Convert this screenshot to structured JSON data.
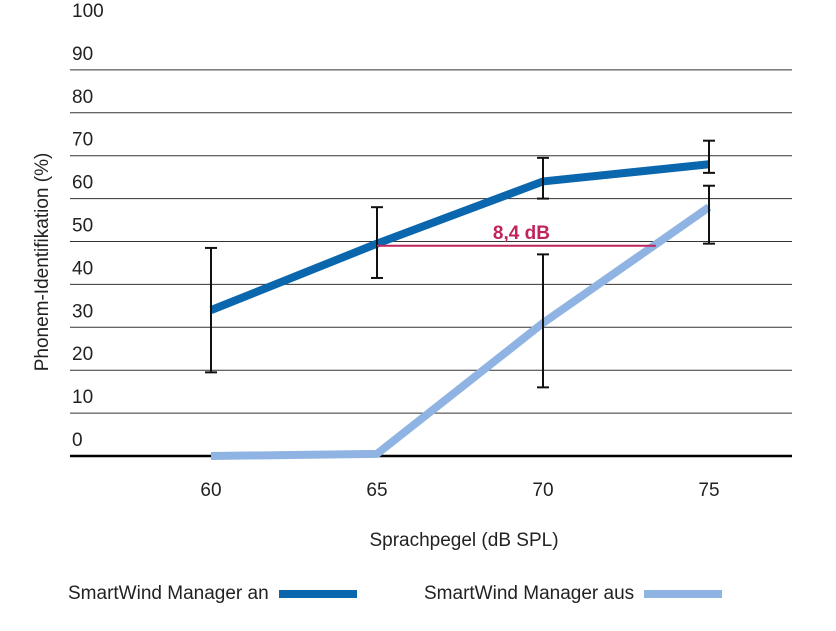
{
  "chart_data": {
    "type": "line",
    "xlabel": "Sprachpegel (dB SPL)",
    "ylabel": "Phonem-Identifikation (%)",
    "x": [
      60,
      65,
      70,
      75
    ],
    "x_tick_labels": [
      "60",
      "65",
      "70",
      "75"
    ],
    "ylim": [
      0,
      100
    ],
    "y_ticks": [
      0,
      10,
      20,
      30,
      40,
      50,
      60,
      70,
      80,
      90,
      100
    ],
    "y_tick_labels": [
      "0",
      "10",
      "20",
      "30",
      "40",
      "50",
      "60",
      "70",
      "80",
      "90",
      "100"
    ],
    "grid": "horizontal",
    "legend_position": "bottom",
    "series": [
      {
        "name": "SmartWind Manager an",
        "color": "#0b67ad",
        "values": [
          34,
          49.5,
          64,
          68
        ],
        "error_low": [
          19.5,
          41.5,
          60,
          66
        ],
        "error_high": [
          48.5,
          58,
          69.5,
          73.5
        ]
      },
      {
        "name": "SmartWind Manager aus",
        "color": "#8fb4e3",
        "values": [
          0,
          0.5,
          31,
          58
        ],
        "error_low": [
          null,
          null,
          16,
          49.5
        ],
        "error_high": [
          null,
          null,
          47,
          63
        ]
      }
    ],
    "annotation": {
      "text": "8,4 dB",
      "color": "#c0245c",
      "x_start": 65,
      "x_end": 73.4,
      "y": 49
    }
  }
}
